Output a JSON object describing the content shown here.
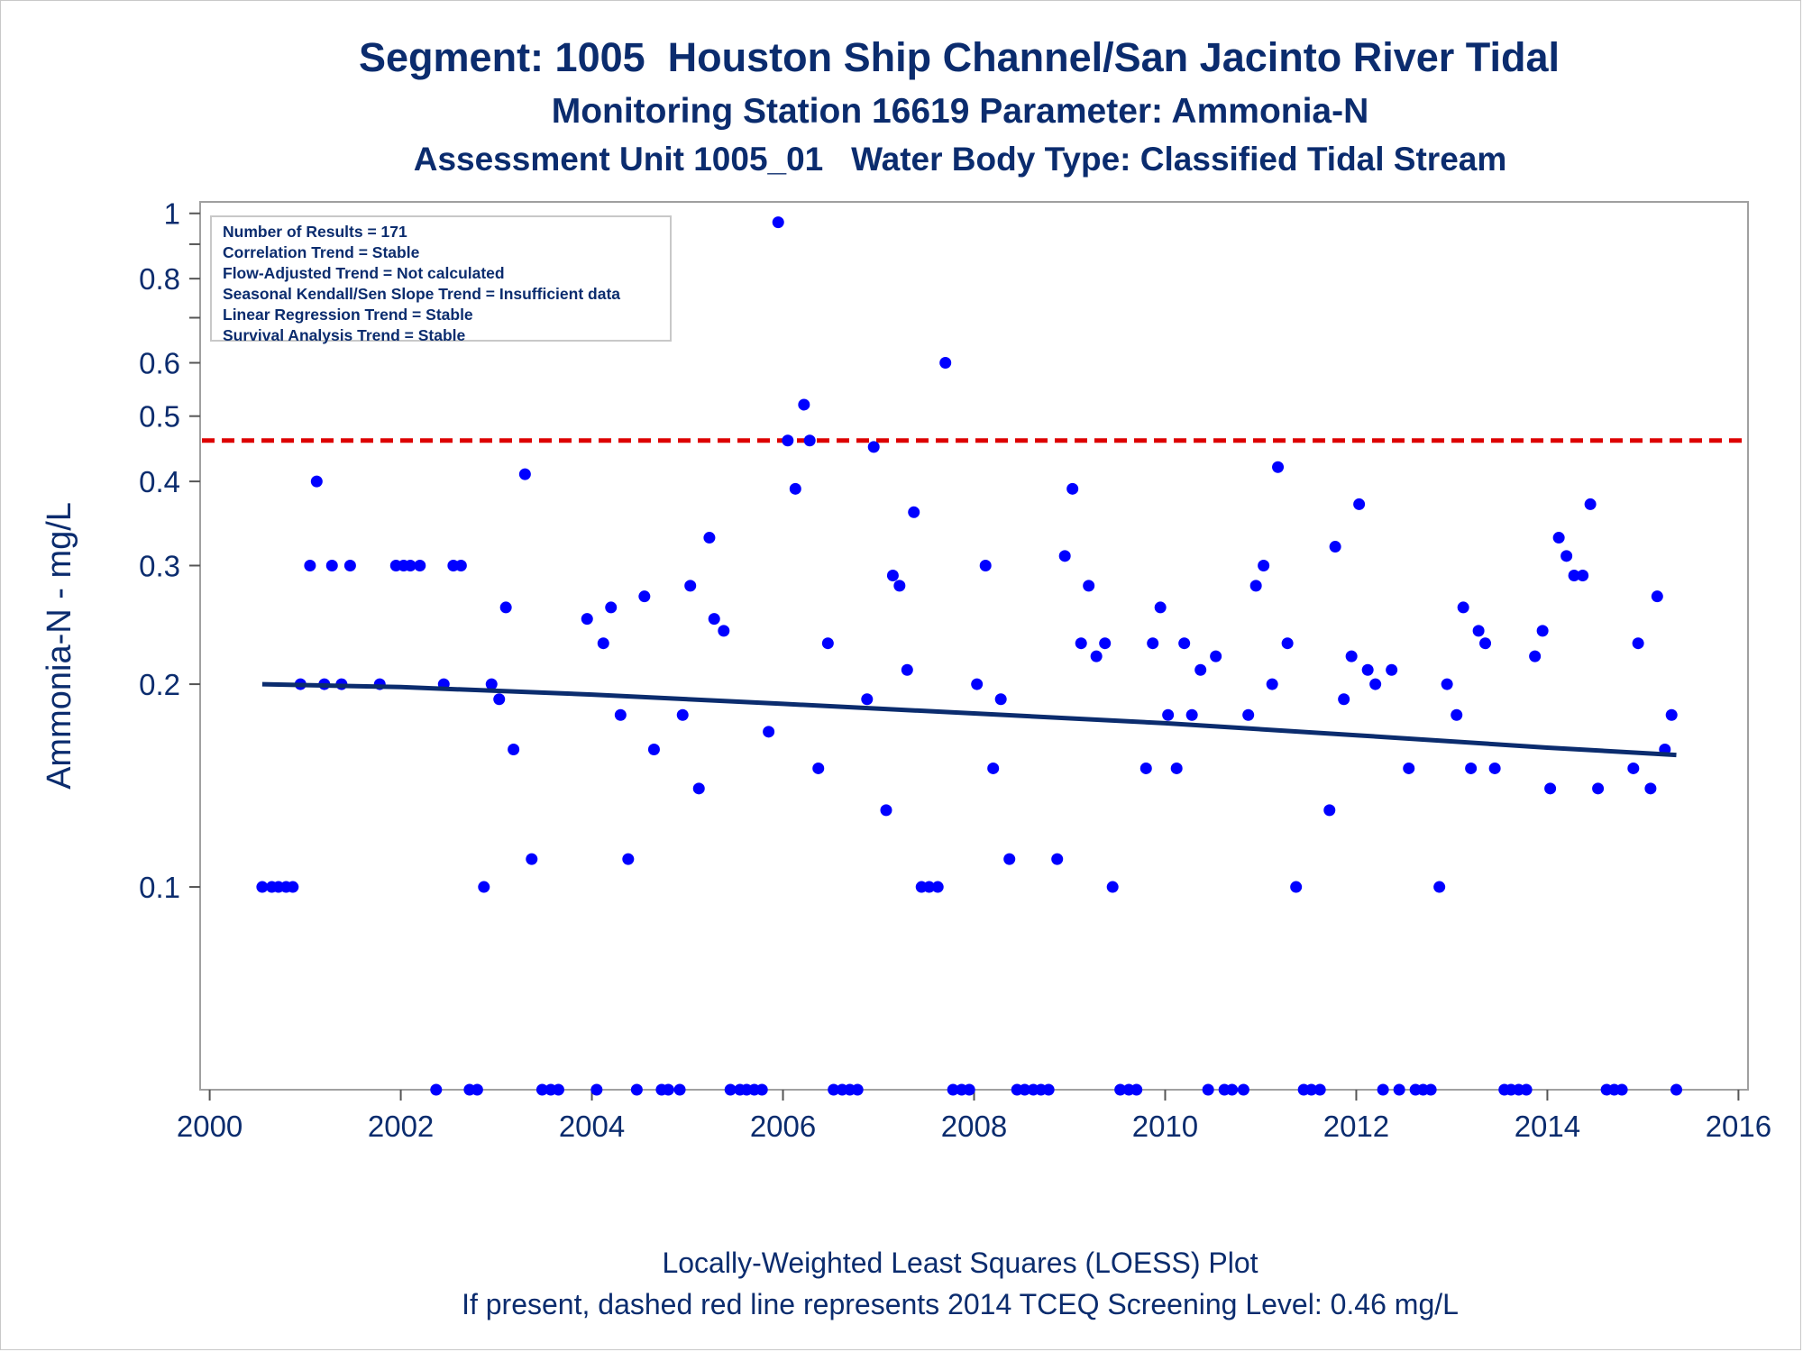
{
  "titles": {
    "line1": "Segment: 1005  Houston Ship Channel/San Jacinto River Tidal",
    "line2": "Monitoring Station 16619 Parameter: Ammonia-N",
    "line3": "Assessment Unit 1005_01   Water Body Type: Classified Tidal Stream"
  },
  "footnotes": {
    "line1": "Locally-Weighted Least Squares (LOESS) Plot",
    "line2": "If present, dashed red line represents 2014 TCEQ Screening Level: 0.46 mg/L"
  },
  "inset": {
    "lines": [
      "Number of Results = 171",
      "Correlation Trend = Stable",
      "Flow-Adjusted Trend = Not calculated",
      "Seasonal Kendall/Sen Slope Trend = Insufficient data",
      "Linear Regression Trend = Stable",
      "Survival Analysis Trend = Stable"
    ]
  },
  "colors": {
    "text": "#0b2c6e",
    "points": "#0000ff",
    "loess": "#0b2c6e",
    "screening_line": "#dd0000",
    "frame": "#a0a0a0"
  },
  "chart_data": {
    "type": "scatter",
    "title": "Segment: 1005  Houston Ship Channel/San Jacinto River Tidal",
    "ylabel": "Ammonia-N - mg/L",
    "xlabel": "",
    "xlim": [
      1999.9,
      2016.1
    ],
    "ylim": [
      0.05,
      1.04
    ],
    "yscale": "log",
    "x_ticks": [
      2000,
      2002,
      2004,
      2006,
      2008,
      2010,
      2012,
      2014,
      2016
    ],
    "y_ticks": [
      {
        "value": 1,
        "label": "1"
      },
      {
        "value": 0.8,
        "label": "0.8"
      },
      {
        "value": 0.6,
        "label": "0.6"
      },
      {
        "value": 0.5,
        "label": "0.5"
      },
      {
        "value": 0.4,
        "label": "0.4"
      },
      {
        "value": 0.3,
        "label": "0.3"
      },
      {
        "value": 0.2,
        "label": "0.2"
      },
      {
        "value": 0.1,
        "label": "0.1"
      }
    ],
    "y_minor_ticks": [
      0.9,
      0.7
    ],
    "grid": false,
    "screening_level": 0.46,
    "censored_row_value": 0.05,
    "loess": {
      "x": [
        2000.55,
        2002.0,
        2004.0,
        2006.0,
        2008.0,
        2010.0,
        2012.0,
        2014.0,
        2015.35
      ],
      "y": [
        0.2,
        0.198,
        0.193,
        0.187,
        0.181,
        0.175,
        0.168,
        0.161,
        0.157
      ]
    },
    "points": [
      {
        "x": 2000.55,
        "y": 0.1
      },
      {
        "x": 2000.65,
        "y": 0.1
      },
      {
        "x": 2000.72,
        "y": 0.1
      },
      {
        "x": 2000.8,
        "y": 0.1
      },
      {
        "x": 2000.87,
        "y": 0.1
      },
      {
        "x": 2000.95,
        "y": 0.2
      },
      {
        "x": 2001.05,
        "y": 0.3
      },
      {
        "x": 2001.12,
        "y": 0.4
      },
      {
        "x": 2001.2,
        "y": 0.2
      },
      {
        "x": 2001.28,
        "y": 0.3
      },
      {
        "x": 2001.38,
        "y": 0.2
      },
      {
        "x": 2001.47,
        "y": 0.3
      },
      {
        "x": 2001.78,
        "y": 0.2
      },
      {
        "x": 2001.95,
        "y": 0.3
      },
      {
        "x": 2002.03,
        "y": 0.3
      },
      {
        "x": 2002.1,
        "y": 0.3
      },
      {
        "x": 2002.2,
        "y": 0.3
      },
      {
        "x": 2002.37,
        "y": 0.05
      },
      {
        "x": 2002.45,
        "y": 0.2
      },
      {
        "x": 2002.55,
        "y": 0.3
      },
      {
        "x": 2002.63,
        "y": 0.3
      },
      {
        "x": 2002.72,
        "y": 0.05
      },
      {
        "x": 2002.8,
        "y": 0.05
      },
      {
        "x": 2002.87,
        "y": 0.1
      },
      {
        "x": 2002.95,
        "y": 0.2
      },
      {
        "x": 2003.03,
        "y": 0.19
      },
      {
        "x": 2003.1,
        "y": 0.26
      },
      {
        "x": 2003.18,
        "y": 0.16
      },
      {
        "x": 2003.3,
        "y": 0.41
      },
      {
        "x": 2003.37,
        "y": 0.11
      },
      {
        "x": 2003.48,
        "y": 0.05
      },
      {
        "x": 2003.57,
        "y": 0.05
      },
      {
        "x": 2003.65,
        "y": 0.05
      },
      {
        "x": 2003.95,
        "y": 0.25
      },
      {
        "x": 2004.05,
        "y": 0.05
      },
      {
        "x": 2004.12,
        "y": 0.23
      },
      {
        "x": 2004.2,
        "y": 0.26
      },
      {
        "x": 2004.3,
        "y": 0.18
      },
      {
        "x": 2004.38,
        "y": 0.11
      },
      {
        "x": 2004.47,
        "y": 0.05
      },
      {
        "x": 2004.55,
        "y": 0.27
      },
      {
        "x": 2004.65,
        "y": 0.16
      },
      {
        "x": 2004.73,
        "y": 0.05
      },
      {
        "x": 2004.8,
        "y": 0.05
      },
      {
        "x": 2004.92,
        "y": 0.05
      },
      {
        "x": 2004.95,
        "y": 0.18
      },
      {
        "x": 2005.03,
        "y": 0.28
      },
      {
        "x": 2005.12,
        "y": 0.14
      },
      {
        "x": 2005.23,
        "y": 0.33
      },
      {
        "x": 2005.28,
        "y": 0.25
      },
      {
        "x": 2005.38,
        "y": 0.24
      },
      {
        "x": 2005.45,
        "y": 0.05
      },
      {
        "x": 2005.55,
        "y": 0.05
      },
      {
        "x": 2005.62,
        "y": 0.05
      },
      {
        "x": 2005.7,
        "y": 0.05
      },
      {
        "x": 2005.78,
        "y": 0.05
      },
      {
        "x": 2005.85,
        "y": 0.17
      },
      {
        "x": 2005.95,
        "y": 0.97
      },
      {
        "x": 2006.05,
        "y": 0.46
      },
      {
        "x": 2006.13,
        "y": 0.39
      },
      {
        "x": 2006.22,
        "y": 0.52
      },
      {
        "x": 2006.28,
        "y": 0.46
      },
      {
        "x": 2006.37,
        "y": 0.15
      },
      {
        "x": 2006.47,
        "y": 0.23
      },
      {
        "x": 2006.53,
        "y": 0.05
      },
      {
        "x": 2006.62,
        "y": 0.05
      },
      {
        "x": 2006.7,
        "y": 0.05
      },
      {
        "x": 2006.78,
        "y": 0.05
      },
      {
        "x": 2006.88,
        "y": 0.19
      },
      {
        "x": 2006.95,
        "y": 0.45
      },
      {
        "x": 2007.08,
        "y": 0.13
      },
      {
        "x": 2007.15,
        "y": 0.29
      },
      {
        "x": 2007.22,
        "y": 0.28
      },
      {
        "x": 2007.3,
        "y": 0.21
      },
      {
        "x": 2007.37,
        "y": 0.36
      },
      {
        "x": 2007.45,
        "y": 0.1
      },
      {
        "x": 2007.53,
        "y": 0.1
      },
      {
        "x": 2007.62,
        "y": 0.1
      },
      {
        "x": 2007.7,
        "y": 0.6
      },
      {
        "x": 2007.78,
        "y": 0.05
      },
      {
        "x": 2007.87,
        "y": 0.05
      },
      {
        "x": 2007.95,
        "y": 0.05
      },
      {
        "x": 2008.03,
        "y": 0.2
      },
      {
        "x": 2008.12,
        "y": 0.3
      },
      {
        "x": 2008.2,
        "y": 0.15
      },
      {
        "x": 2008.28,
        "y": 0.19
      },
      {
        "x": 2008.37,
        "y": 0.11
      },
      {
        "x": 2008.45,
        "y": 0.05
      },
      {
        "x": 2008.53,
        "y": 0.05
      },
      {
        "x": 2008.62,
        "y": 0.05
      },
      {
        "x": 2008.7,
        "y": 0.05
      },
      {
        "x": 2008.78,
        "y": 0.05
      },
      {
        "x": 2008.87,
        "y": 0.11
      },
      {
        "x": 2008.95,
        "y": 0.31
      },
      {
        "x": 2009.03,
        "y": 0.39
      },
      {
        "x": 2009.12,
        "y": 0.23
      },
      {
        "x": 2009.2,
        "y": 0.28
      },
      {
        "x": 2009.28,
        "y": 0.22
      },
      {
        "x": 2009.37,
        "y": 0.23
      },
      {
        "x": 2009.45,
        "y": 0.1
      },
      {
        "x": 2009.53,
        "y": 0.05
      },
      {
        "x": 2009.62,
        "y": 0.05
      },
      {
        "x": 2009.7,
        "y": 0.05
      },
      {
        "x": 2009.8,
        "y": 0.15
      },
      {
        "x": 2009.87,
        "y": 0.23
      },
      {
        "x": 2009.95,
        "y": 0.26
      },
      {
        "x": 2010.03,
        "y": 0.18
      },
      {
        "x": 2010.12,
        "y": 0.15
      },
      {
        "x": 2010.2,
        "y": 0.23
      },
      {
        "x": 2010.28,
        "y": 0.18
      },
      {
        "x": 2010.37,
        "y": 0.21
      },
      {
        "x": 2010.45,
        "y": 0.05
      },
      {
        "x": 2010.53,
        "y": 0.22
      },
      {
        "x": 2010.62,
        "y": 0.05
      },
      {
        "x": 2010.7,
        "y": 0.05
      },
      {
        "x": 2010.82,
        "y": 0.05
      },
      {
        "x": 2010.87,
        "y": 0.18
      },
      {
        "x": 2010.95,
        "y": 0.28
      },
      {
        "x": 2011.03,
        "y": 0.3
      },
      {
        "x": 2011.12,
        "y": 0.2
      },
      {
        "x": 2011.18,
        "y": 0.42
      },
      {
        "x": 2011.28,
        "y": 0.23
      },
      {
        "x": 2011.37,
        "y": 0.1
      },
      {
        "x": 2011.45,
        "y": 0.05
      },
      {
        "x": 2011.53,
        "y": 0.05
      },
      {
        "x": 2011.62,
        "y": 0.05
      },
      {
        "x": 2011.72,
        "y": 0.13
      },
      {
        "x": 2011.78,
        "y": 0.32
      },
      {
        "x": 2011.87,
        "y": 0.19
      },
      {
        "x": 2011.95,
        "y": 0.22
      },
      {
        "x": 2012.03,
        "y": 0.37
      },
      {
        "x": 2012.12,
        "y": 0.21
      },
      {
        "x": 2012.2,
        "y": 0.2
      },
      {
        "x": 2012.28,
        "y": 0.05
      },
      {
        "x": 2012.37,
        "y": 0.21
      },
      {
        "x": 2012.45,
        "y": 0.05
      },
      {
        "x": 2012.55,
        "y": 0.15
      },
      {
        "x": 2012.62,
        "y": 0.05
      },
      {
        "x": 2012.7,
        "y": 0.05
      },
      {
        "x": 2012.78,
        "y": 0.05
      },
      {
        "x": 2012.87,
        "y": 0.1
      },
      {
        "x": 2012.95,
        "y": 0.2
      },
      {
        "x": 2013.05,
        "y": 0.18
      },
      {
        "x": 2013.12,
        "y": 0.26
      },
      {
        "x": 2013.2,
        "y": 0.15
      },
      {
        "x": 2013.28,
        "y": 0.24
      },
      {
        "x": 2013.35,
        "y": 0.23
      },
      {
        "x": 2013.45,
        "y": 0.15
      },
      {
        "x": 2013.55,
        "y": 0.05
      },
      {
        "x": 2013.62,
        "y": 0.05
      },
      {
        "x": 2013.7,
        "y": 0.05
      },
      {
        "x": 2013.78,
        "y": 0.05
      },
      {
        "x": 2013.87,
        "y": 0.22
      },
      {
        "x": 2013.95,
        "y": 0.24
      },
      {
        "x": 2014.03,
        "y": 0.14
      },
      {
        "x": 2014.12,
        "y": 0.33
      },
      {
        "x": 2014.2,
        "y": 0.31
      },
      {
        "x": 2014.28,
        "y": 0.29
      },
      {
        "x": 2014.37,
        "y": 0.29
      },
      {
        "x": 2014.45,
        "y": 0.37
      },
      {
        "x": 2014.53,
        "y": 0.14
      },
      {
        "x": 2014.62,
        "y": 0.05
      },
      {
        "x": 2014.7,
        "y": 0.05
      },
      {
        "x": 2014.78,
        "y": 0.05
      },
      {
        "x": 2014.9,
        "y": 0.15
      },
      {
        "x": 2014.95,
        "y": 0.23
      },
      {
        "x": 2015.08,
        "y": 0.14
      },
      {
        "x": 2015.15,
        "y": 0.27
      },
      {
        "x": 2015.23,
        "y": 0.16
      },
      {
        "x": 2015.3,
        "y": 0.18
      },
      {
        "x": 2015.35,
        "y": 0.05
      }
    ]
  }
}
